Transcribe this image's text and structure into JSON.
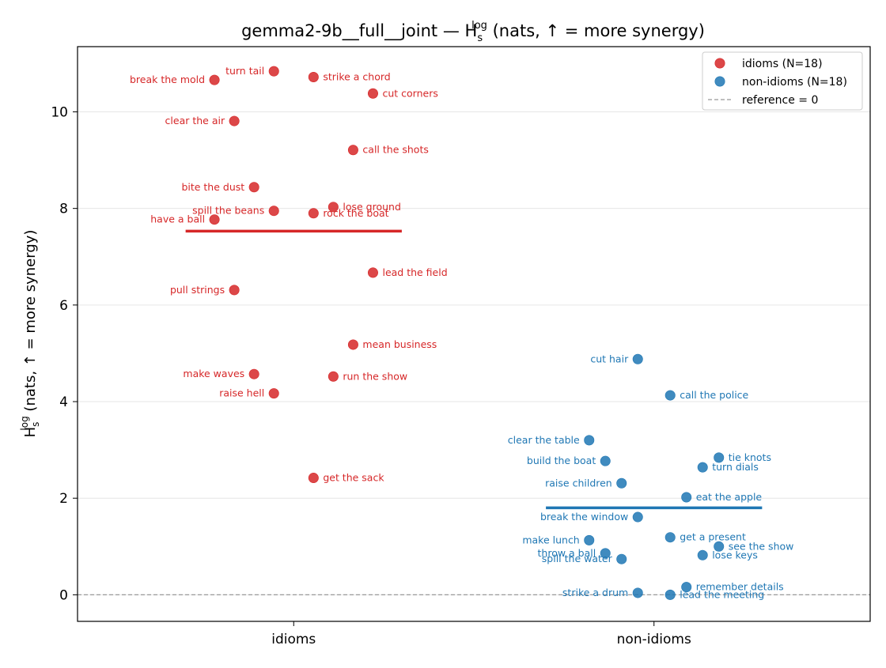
{
  "chart_data": {
    "type": "scatter",
    "title": "gemma2-9b__full__joint — H",
    "title_sub": "s",
    "title_sup": "log",
    "title_suffix": " (nats, ↑ = more synergy)",
    "ylabel": "H",
    "ylabel_sub": "s",
    "ylabel_sup": "log",
    "ylabel_suffix": " (nats, ↑ = more synergy)",
    "ylim": [
      -0.55,
      11.35
    ],
    "yticks": [
      0,
      2,
      4,
      6,
      8,
      10
    ],
    "categories": [
      "idioms",
      "non-idioms"
    ],
    "grid": "horizontal",
    "legend_position": "top-right",
    "reference_line": 0,
    "series": [
      {
        "name": "idioms (N=18)",
        "color": "#d62728",
        "category": "idioms",
        "mean": 7.53,
        "points": [
          {
            "label": "break the mold",
            "x": -0.22,
            "y": 10.66,
            "side": "left"
          },
          {
            "label": "turn tail",
            "x": -0.055,
            "y": 10.84,
            "side": "left"
          },
          {
            "label": "strike a chord",
            "x": 0.055,
            "y": 10.72,
            "side": "right"
          },
          {
            "label": "cut corners",
            "x": 0.22,
            "y": 10.38,
            "side": "right"
          },
          {
            "label": "clear the air",
            "x": -0.165,
            "y": 9.81,
            "side": "left"
          },
          {
            "label": "call the shots",
            "x": 0.165,
            "y": 9.21,
            "side": "right"
          },
          {
            "label": "bite the dust",
            "x": -0.11,
            "y": 8.44,
            "side": "left"
          },
          {
            "label": "lose ground",
            "x": 0.11,
            "y": 8.03,
            "side": "right"
          },
          {
            "label": "spill the beans",
            "x": -0.055,
            "y": 7.95,
            "side": "left"
          },
          {
            "label": "rock the boat",
            "x": 0.055,
            "y": 7.9,
            "side": "right"
          },
          {
            "label": "have a ball",
            "x": -0.22,
            "y": 7.77,
            "side": "left"
          },
          {
            "label": "lead the field",
            "x": 0.22,
            "y": 6.67,
            "side": "right"
          },
          {
            "label": "pull strings",
            "x": -0.165,
            "y": 6.31,
            "side": "left"
          },
          {
            "label": "mean business",
            "x": 0.165,
            "y": 5.18,
            "side": "right"
          },
          {
            "label": "make waves",
            "x": -0.11,
            "y": 4.57,
            "side": "left"
          },
          {
            "label": "run the show",
            "x": 0.11,
            "y": 4.52,
            "side": "right"
          },
          {
            "label": "raise hell",
            "x": -0.055,
            "y": 4.17,
            "side": "left"
          },
          {
            "label": "get the sack",
            "x": 0.055,
            "y": 2.42,
            "side": "right"
          }
        ]
      },
      {
        "name": "non-idioms (N=18)",
        "color": "#1f77b4",
        "category": "non-idioms",
        "mean": 1.8,
        "points": [
          {
            "label": "cut hair",
            "x": -0.045,
            "y": 4.88,
            "side": "left"
          },
          {
            "label": "call the police",
            "x": 0.045,
            "y": 4.13,
            "side": "right"
          },
          {
            "label": "clear the table",
            "x": -0.18,
            "y": 3.2,
            "side": "left"
          },
          {
            "label": "tie knots",
            "x": 0.18,
            "y": 2.84,
            "side": "right"
          },
          {
            "label": "build the boat",
            "x": -0.135,
            "y": 2.77,
            "side": "left"
          },
          {
            "label": "turn dials",
            "x": 0.135,
            "y": 2.64,
            "side": "right"
          },
          {
            "label": "raise children",
            "x": -0.09,
            "y": 2.31,
            "side": "left"
          },
          {
            "label": "eat the apple",
            "x": 0.09,
            "y": 2.02,
            "side": "right"
          },
          {
            "label": "break the window",
            "x": -0.045,
            "y": 1.61,
            "side": "left"
          },
          {
            "label": "get a present",
            "x": 0.045,
            "y": 1.19,
            "side": "right"
          },
          {
            "label": "make lunch",
            "x": -0.18,
            "y": 1.13,
            "side": "left"
          },
          {
            "label": "see the show",
            "x": 0.18,
            "y": 1.0,
            "side": "right"
          },
          {
            "label": "throw a ball",
            "x": -0.135,
            "y": 0.86,
            "side": "left"
          },
          {
            "label": "lose keys",
            "x": 0.135,
            "y": 0.82,
            "side": "right"
          },
          {
            "label": "spill the water",
            "x": -0.09,
            "y": 0.74,
            "side": "left"
          },
          {
            "label": "remember details",
            "x": 0.09,
            "y": 0.16,
            "side": "right"
          },
          {
            "label": "strike a drum",
            "x": -0.045,
            "y": 0.04,
            "side": "left"
          },
          {
            "label": "lead the meeting",
            "x": 0.045,
            "y": 0.0,
            "side": "right"
          }
        ]
      }
    ],
    "legend": [
      {
        "label": "idioms (N=18)",
        "kind": "marker",
        "color": "#d62728"
      },
      {
        "label": "non-idioms (N=18)",
        "kind": "marker",
        "color": "#1f77b4"
      },
      {
        "label": "reference = 0",
        "kind": "dashed-line",
        "color": "#999999"
      }
    ]
  }
}
